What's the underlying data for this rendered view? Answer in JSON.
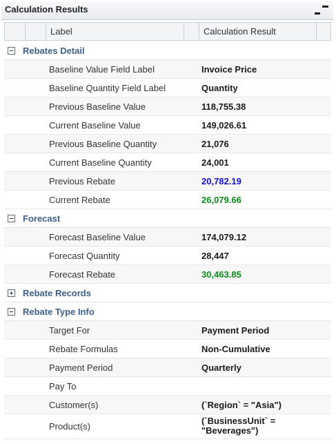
{
  "panel": {
    "title": "Calculation Results"
  },
  "header": {
    "label_col": "Label",
    "result_col": "Calculation Result"
  },
  "groups": {
    "rebates_detail": {
      "title": "Rebates Detail",
      "rows": [
        {
          "label": "Baseline Value Field Label",
          "value": "Invoice Price"
        },
        {
          "label": "Baseline Quantity Field Label",
          "value": "Quantity"
        },
        {
          "label": "Previous Baseline Value",
          "value": "118,755.38"
        },
        {
          "label": "Current Baseline Value",
          "value": "149,026.61"
        },
        {
          "label": "Previous Baseline Quantity",
          "value": "21,076"
        },
        {
          "label": "Current Baseline Quantity",
          "value": "24,001"
        },
        {
          "label": "Previous Rebate",
          "value": "20,782.19"
        },
        {
          "label": "Current Rebate",
          "value": "26,079.66"
        }
      ]
    },
    "forecast": {
      "title": "Forecast",
      "rows": [
        {
          "label": "Forecast Baseline Value",
          "value": "174,079.12"
        },
        {
          "label": "Forecast Quantity",
          "value": "28,447"
        },
        {
          "label": "Forecast Rebate",
          "value": "30,463.85"
        }
      ]
    },
    "rebate_records": {
      "title": "Rebate Records"
    },
    "rebate_type_info": {
      "title": "Rebate Type Info",
      "rows": [
        {
          "label": "Target For",
          "value": "Payment Period"
        },
        {
          "label": "Rebate Formulas",
          "value": "Non-Cumulative"
        },
        {
          "label": "Payment Period",
          "value": "Quarterly"
        },
        {
          "label": "Pay To",
          "value": ""
        },
        {
          "label": "Customer(s)",
          "value": "(`Region` = \"Asia\")"
        },
        {
          "label": "Product(s)",
          "value": "(`BusinessUnit` = \"Beverages\")"
        }
      ]
    }
  },
  "colors": {
    "group_title": "#3e5f8a",
    "value_blue": "#1010d0",
    "value_green": "#0a8a1a"
  },
  "icons": {
    "collapse": "collapse-panel-icon",
    "expanded": "minus-box-icon",
    "collapsed": "plus-box-icon"
  }
}
